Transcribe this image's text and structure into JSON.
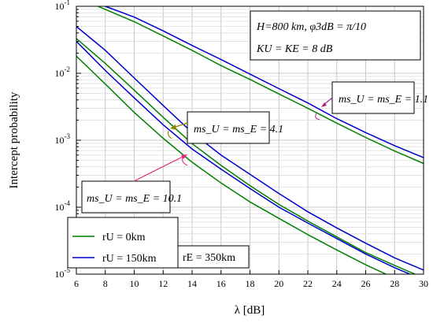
{
  "chart_data": {
    "type": "line",
    "xlabel": "λ [dB]",
    "ylabel": "Intercept probability",
    "xlim": [
      6,
      30
    ],
    "ylim": [
      1e-05,
      0.1
    ],
    "yscale": "log",
    "grid": true,
    "x_ticks": [
      "6",
      "8",
      "10",
      "12",
      "14",
      "16",
      "18",
      "20",
      "22",
      "24",
      "26",
      "28",
      "30"
    ],
    "y_ticks": [
      {
        "base": "10",
        "exp": "-5"
      },
      {
        "base": "10",
        "exp": "-4"
      },
      {
        "base": "10",
        "exp": "-3"
      },
      {
        "base": "10",
        "exp": "-2"
      },
      {
        "base": "10",
        "exp": "-1"
      }
    ],
    "params_box": {
      "line1": "H=800 km,  φ3dB = π/10",
      "line2": "KU = KE = 8 dB"
    },
    "annotations": [
      {
        "text": "ms_U = ms_E = 1.1"
      },
      {
        "text": "ms_U = ms_E = 4.1"
      },
      {
        "text": "ms_U = ms_E = 10.1"
      }
    ],
    "legend": {
      "position": "bottom-left",
      "entries": [
        {
          "label": "rU = 0km",
          "color": "#008000"
        },
        {
          "label": "rU = 150km",
          "color": "#0000cc"
        }
      ],
      "extra": "rE = 350km"
    },
    "series": [
      {
        "group": "m=1.1",
        "color": "#0000cc",
        "x": [
          8,
          10,
          12,
          14,
          16,
          18,
          20,
          22,
          24,
          26,
          28,
          30
        ],
        "y": [
          0.1,
          0.069,
          0.043,
          0.026,
          0.016,
          0.0097,
          0.0059,
          0.0036,
          0.0021,
          0.0013,
          0.00083,
          0.00055
        ]
      },
      {
        "group": "m=1.1",
        "color": "#008000",
        "x": [
          7.5,
          10,
          12,
          14,
          16,
          18,
          20,
          22,
          24,
          26,
          28,
          30
        ],
        "y": [
          0.1,
          0.059,
          0.036,
          0.022,
          0.013,
          0.0081,
          0.0049,
          0.003,
          0.0018,
          0.0011,
          0.00069,
          0.00045
        ]
      },
      {
        "group": "m=4.1",
        "color": "#0000cc",
        "x": [
          6,
          8,
          10,
          12,
          14,
          16,
          18,
          20,
          22,
          24,
          26,
          28,
          30
        ],
        "y": [
          0.05,
          0.022,
          0.0085,
          0.0033,
          0.0013,
          0.0006,
          0.00031,
          0.00016,
          8.55e-05,
          4.9e-05,
          2.9e-05,
          1.75e-05,
          1.15e-05
        ]
      },
      {
        "group": "m=4.1",
        "color": "#008000",
        "x": [
          6,
          8,
          10,
          12,
          14,
          16,
          18,
          20,
          22,
          24,
          26,
          28,
          30
        ],
        "y": [
          0.033,
          0.014,
          0.0056,
          0.0022,
          0.00089,
          0.00042,
          0.00021,
          0.00011,
          6.2e-05,
          3.6e-05,
          2.1e-05,
          1.35e-05,
          8.8e-06
        ]
      },
      {
        "group": "m=10.1",
        "color": "#0000cc",
        "x": [
          6,
          8,
          10,
          12,
          14,
          16,
          18,
          20,
          22,
          24,
          26,
          28,
          30
        ],
        "y": [
          0.03,
          0.011,
          0.0043,
          0.0017,
          0.00074,
          0.00037,
          0.00019,
          0.0001,
          5.8e-05,
          3.4e-05,
          2e-05,
          1.25e-05,
          8.2e-06
        ]
      },
      {
        "group": "m=10.1",
        "color": "#008000",
        "x": [
          6,
          8,
          10,
          12,
          14,
          16,
          18,
          20,
          22,
          24,
          26,
          28,
          30
        ],
        "y": [
          0.018,
          0.0069,
          0.0026,
          0.00107,
          0.00047,
          0.00023,
          0.00012,
          6.8e-05,
          3.9e-05,
          2.3e-05,
          1.38e-05,
          8.7e-06,
          5.8e-06
        ]
      }
    ]
  }
}
